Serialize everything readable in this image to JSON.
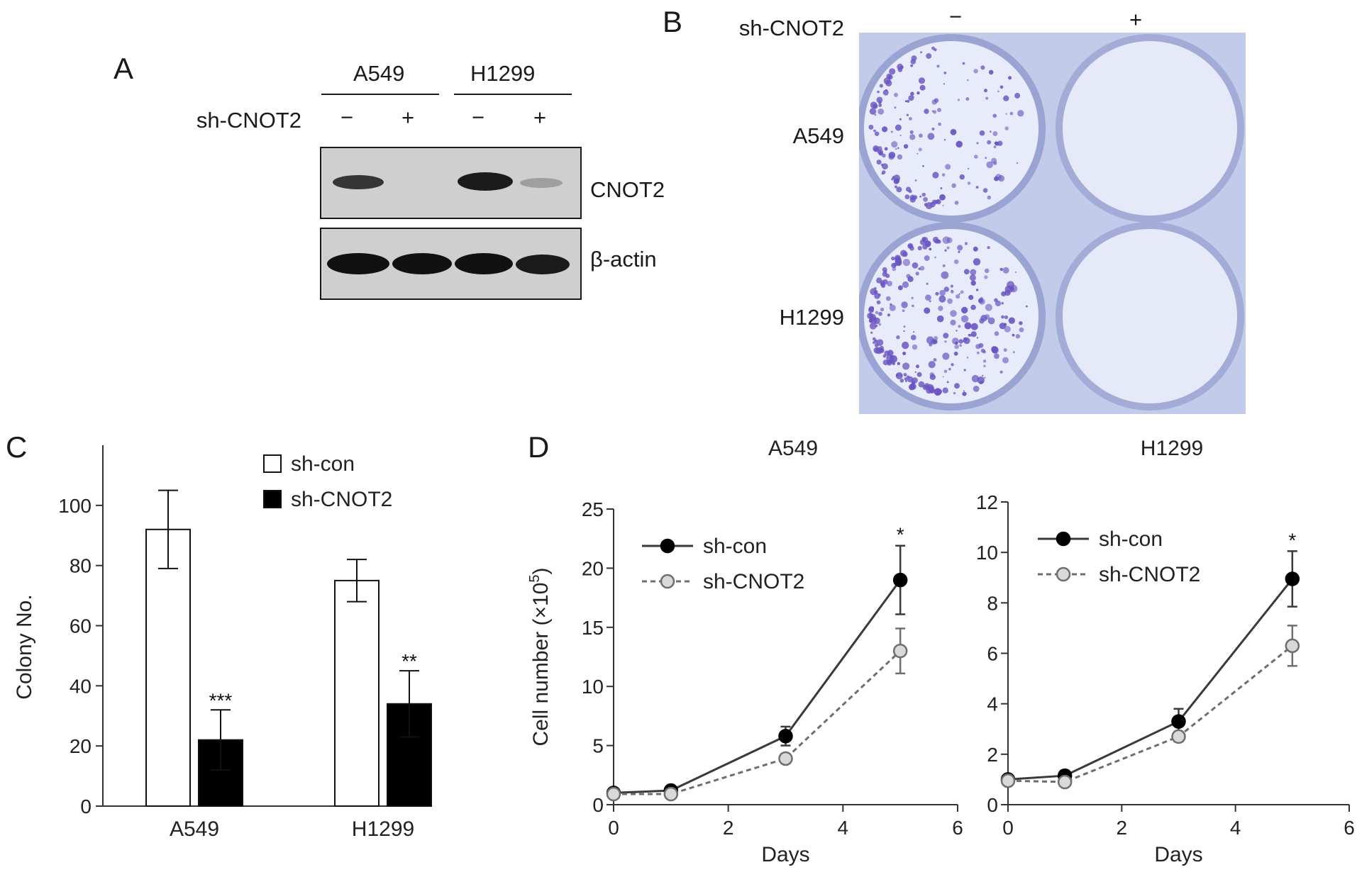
{
  "panel_a": {
    "letter": "A",
    "cell_lines": [
      "A549",
      "H1299"
    ],
    "treatment_label": "sh-CNOT2",
    "treatment_signs": [
      "−",
      "+",
      "−",
      "+"
    ],
    "blots": [
      {
        "name": "CNOT2",
        "intensity": [
          0.85,
          0.0,
          0.95,
          0.3
        ]
      },
      {
        "name": "β-actin",
        "intensity": [
          1.0,
          1.0,
          1.0,
          0.95
        ]
      }
    ]
  },
  "panel_b": {
    "letter": "B",
    "treatment_label": "sh-CNOT2",
    "treatment_signs": [
      "−",
      "+"
    ],
    "row_labels": [
      "A549",
      "H1299"
    ],
    "plate_color": "#c9d0ec",
    "stain_color": "#6a55c2"
  },
  "panel_c": {
    "letter": "C"
  },
  "panel_d": {
    "letter": "D"
  },
  "chart_data": [
    {
      "type": "bar",
      "panel": "C",
      "categories": [
        "A549",
        "H1299"
      ],
      "series": [
        {
          "name": "sh-con",
          "values": [
            92,
            75
          ],
          "errors": [
            13,
            7
          ],
          "color": "#ffffff"
        },
        {
          "name": "sh-CNOT2",
          "values": [
            22,
            34
          ],
          "errors": [
            10,
            11
          ],
          "color": "#000000"
        }
      ],
      "significance": {
        "sh-CNOT2": [
          "***",
          "**"
        ]
      },
      "ylabel": "Colony No.",
      "ylim": [
        0,
        120
      ],
      "yticks": [
        0,
        20,
        40,
        60,
        80,
        100
      ],
      "legend": "top-right"
    },
    {
      "type": "line",
      "panel": "D",
      "title": "A549",
      "xlabel": "Days",
      "ylabel": "Cell number (×10",
      "ylabel_sup": "5",
      "ylabel_close": ")",
      "xlim": [
        0,
        6
      ],
      "xticks": [
        0,
        2,
        4,
        6
      ],
      "ylim": [
        0,
        25
      ],
      "yticks": [
        0,
        5,
        10,
        15,
        20,
        25
      ],
      "x": [
        0,
        1,
        3,
        5
      ],
      "series": [
        {
          "name": "sh-con",
          "values": [
            1.0,
            1.2,
            5.8,
            19.0
          ],
          "errors": [
            0.2,
            0.3,
            0.8,
            2.9
          ],
          "style": "solid",
          "marker": "filled"
        },
        {
          "name": "sh-CNOT2",
          "values": [
            0.9,
            0.9,
            3.9,
            13.0
          ],
          "errors": [
            0.2,
            0.2,
            0.4,
            1.9
          ],
          "style": "dashed",
          "marker": "open"
        }
      ],
      "annotation": {
        "x": 5,
        "text": "*"
      },
      "legend": "top-left"
    },
    {
      "type": "line",
      "panel": "D",
      "title": "H1299",
      "xlabel": "Days",
      "xlim": [
        0,
        6
      ],
      "xticks": [
        0,
        2,
        4,
        6
      ],
      "ylim": [
        0,
        12
      ],
      "yticks": [
        0,
        2,
        4,
        6,
        8,
        10,
        12
      ],
      "x": [
        0,
        1,
        3,
        5
      ],
      "series": [
        {
          "name": "sh-con",
          "values": [
            1.0,
            1.15,
            3.3,
            8.95
          ],
          "errors": [
            0.15,
            0.2,
            0.5,
            1.1
          ],
          "style": "solid",
          "marker": "filled"
        },
        {
          "name": "sh-CNOT2",
          "values": [
            0.95,
            0.9,
            2.7,
            6.3
          ],
          "errors": [
            0.15,
            0.15,
            0.2,
            0.8
          ],
          "style": "dashed",
          "marker": "open"
        }
      ],
      "annotation": {
        "x": 5,
        "text": "*"
      },
      "legend": "top-left"
    }
  ]
}
